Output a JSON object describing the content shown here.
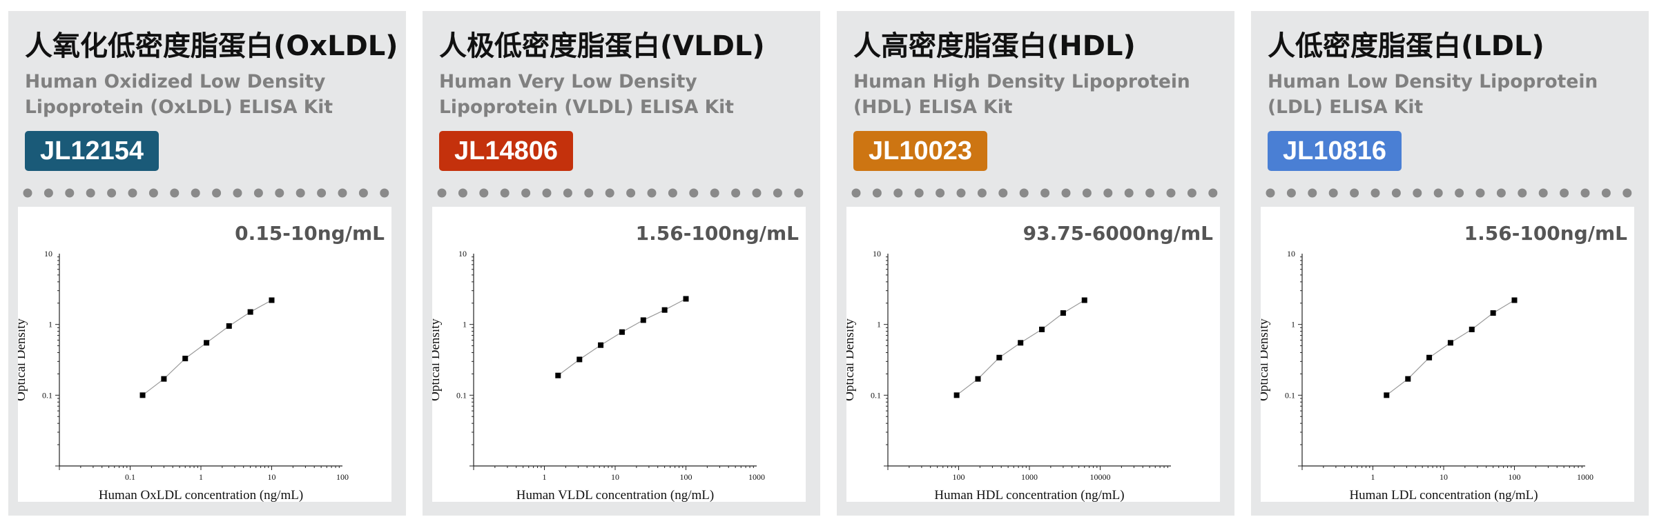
{
  "cards": [
    {
      "cn_title": "人氧化低密度脂蛋白(OxLDL)",
      "en_title": "Human Oxidized Low Density Lipoprotein (OxLDL) ELISA Kit",
      "code": "JL12154",
      "code_color": "#1a5a78",
      "range": "0.15-10ng/mL"
    },
    {
      "cn_title": "人极低密度脂蛋白(VLDL)",
      "en_title": "Human Very Low Density Lipoprotein (VLDL) ELISA Kit",
      "code": "JL14806",
      "code_color": "#c4310c",
      "range": "1.56-100ng/mL"
    },
    {
      "cn_title": "人高密度脂蛋白(HDL)",
      "en_title": "Human High Density Lipoprotein (HDL) ELISA Kit",
      "code": "JL10023",
      "code_color": "#cd7512",
      "range": "93.75-6000ng/mL"
    },
    {
      "cn_title": "人低密度脂蛋白(LDL)",
      "en_title": "Human Low Density Lipoprotein (LDL) ELISA Kit",
      "code": "JL10816",
      "code_color": "#4a7fd4",
      "range": "1.56-100ng/mL"
    }
  ],
  "chart_data": [
    {
      "type": "scatter",
      "xscale": "log",
      "yscale": "log",
      "xlim": [
        0.01,
        100
      ],
      "ylim": [
        0.01,
        10
      ],
      "xticks": [
        0.1,
        1,
        10,
        100
      ],
      "xtick_labels": [
        "0.1",
        "1",
        "10",
        "100"
      ],
      "yticks": [
        0.1,
        1,
        10
      ],
      "ytick_labels": [
        "0.1",
        "1",
        "10"
      ],
      "xlabel": "Human OxLDL concentration (ng/mL)",
      "ylabel": "Optical Density",
      "x": [
        0.15,
        0.3,
        0.6,
        1.2,
        2.5,
        5,
        10
      ],
      "y": [
        0.1,
        0.17,
        0.33,
        0.55,
        0.95,
        1.5,
        2.2
      ]
    },
    {
      "type": "scatter",
      "xscale": "log",
      "yscale": "log",
      "xlim": [
        0.1,
        1000
      ],
      "ylim": [
        0.01,
        10
      ],
      "xticks": [
        1,
        10,
        100,
        1000
      ],
      "xtick_labels": [
        "1",
        "10",
        "100",
        "1000"
      ],
      "yticks": [
        0.1,
        1,
        10
      ],
      "ytick_labels": [
        "0.1",
        "1",
        "10"
      ],
      "xlabel": "Human VLDL concentration (ng/mL)",
      "ylabel": "Optical Density",
      "x": [
        1.56,
        3.13,
        6.25,
        12.5,
        25,
        50,
        100
      ],
      "y": [
        0.19,
        0.32,
        0.51,
        0.78,
        1.15,
        1.6,
        2.3
      ]
    },
    {
      "type": "scatter",
      "xscale": "log",
      "yscale": "log",
      "xlim": [
        10,
        100000
      ],
      "ylim": [
        0.01,
        10
      ],
      "xticks": [
        100,
        1000,
        10000
      ],
      "xtick_labels": [
        "100",
        "1000",
        "10000"
      ],
      "yticks": [
        0.1,
        1,
        10
      ],
      "ytick_labels": [
        "0.1",
        "1",
        "10"
      ],
      "xlabel": "Human HDL concentration (ng/mL)",
      "ylabel": "Optical Density",
      "x": [
        93.75,
        187.5,
        375,
        750,
        1500,
        3000,
        6000
      ],
      "y": [
        0.1,
        0.17,
        0.34,
        0.55,
        0.85,
        1.45,
        2.2
      ]
    },
    {
      "type": "scatter",
      "xscale": "log",
      "yscale": "log",
      "xlim": [
        0.1,
        1000
      ],
      "ylim": [
        0.01,
        10
      ],
      "xticks": [
        1,
        10,
        100,
        1000
      ],
      "xtick_labels": [
        "1",
        "10",
        "100",
        "1000"
      ],
      "yticks": [
        0.1,
        1,
        10
      ],
      "ytick_labels": [
        "0.1",
        "1",
        "10"
      ],
      "xlabel": "Human LDL concentration (ng/mL)",
      "ylabel": "Optical Density",
      "x": [
        1.56,
        3.13,
        6.25,
        12.5,
        25,
        50,
        100
      ],
      "y": [
        0.1,
        0.17,
        0.34,
        0.55,
        0.85,
        1.45,
        2.2
      ]
    }
  ]
}
